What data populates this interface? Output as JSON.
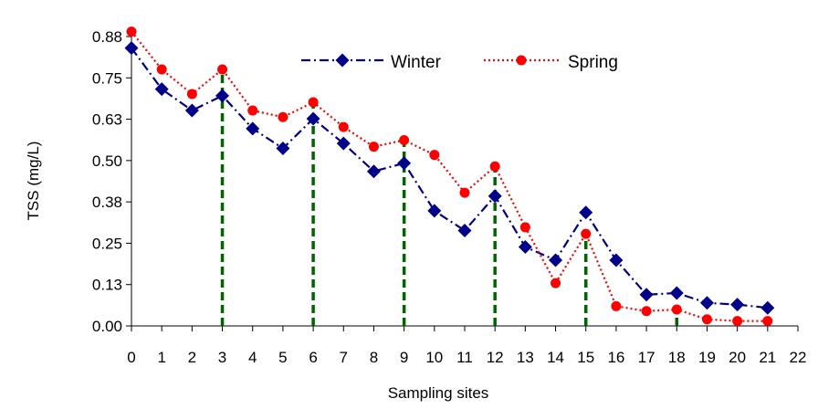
{
  "chart_data": {
    "type": "line",
    "title": "",
    "xlabel": "Sampling sites",
    "ylabel": "TSS (mg/L)",
    "xlim": [
      0,
      22
    ],
    "ylim": [
      0.0,
      0.88
    ],
    "x_ticks": [
      "0",
      "1",
      "2",
      "3",
      "4",
      "5",
      "6",
      "7",
      "8",
      "9",
      "10",
      "11",
      "12",
      "13",
      "14",
      "15",
      "16",
      "17",
      "18",
      "19",
      "20",
      "21",
      "22"
    ],
    "y_ticks": [
      "0.00",
      "0.13",
      "0.25",
      "0.38",
      "0.50",
      "0.63",
      "0.75",
      "0.88"
    ],
    "legend_position": "top-center",
    "series": [
      {
        "name": "Winter",
        "color": "#00008B",
        "marker": "diamond",
        "line_style": "dash-dot",
        "x": [
          0,
          1,
          2,
          3,
          4,
          5,
          6,
          7,
          8,
          9,
          10,
          11,
          12,
          13,
          14,
          15,
          16,
          17,
          18,
          19,
          20,
          21
        ],
        "values": [
          0.845,
          0.72,
          0.655,
          0.7,
          0.6,
          0.54,
          0.63,
          0.555,
          0.47,
          0.495,
          0.35,
          0.29,
          0.395,
          0.24,
          0.2,
          0.345,
          0.2,
          0.095,
          0.1,
          0.07,
          0.065,
          0.055
        ]
      },
      {
        "name": "Spring",
        "color": "#FF0000",
        "marker": "circle",
        "line_style": "dotted",
        "x": [
          0,
          1,
          2,
          3,
          4,
          5,
          6,
          7,
          8,
          9,
          10,
          11,
          12,
          13,
          14,
          15,
          16,
          17,
          18,
          19,
          20,
          21
        ],
        "values": [
          0.895,
          0.78,
          0.705,
          0.78,
          0.655,
          0.635,
          0.68,
          0.605,
          0.545,
          0.565,
          0.52,
          0.405,
          0.485,
          0.3,
          0.13,
          0.28,
          0.06,
          0.045,
          0.05,
          0.02,
          0.015,
          0.015
        ]
      }
    ],
    "reference_lines": {
      "color": "#006400",
      "style": "dashed",
      "segments": [
        {
          "x_bottom": 3,
          "x_top": 3,
          "y_top": 0.78
        },
        {
          "x_bottom": 6,
          "x_top": 6,
          "y_top": 0.68
        },
        {
          "x_bottom": 9,
          "x_top": 9,
          "y_top": 0.565
        },
        {
          "x_bottom": 12,
          "x_top": 12,
          "y_top": 0.485
        },
        {
          "x_bottom": 15,
          "x_top": 15,
          "y_top": 0.28
        },
        {
          "x_bottom": 18,
          "x_top": 18,
          "y_top": 0.05
        }
      ]
    }
  }
}
